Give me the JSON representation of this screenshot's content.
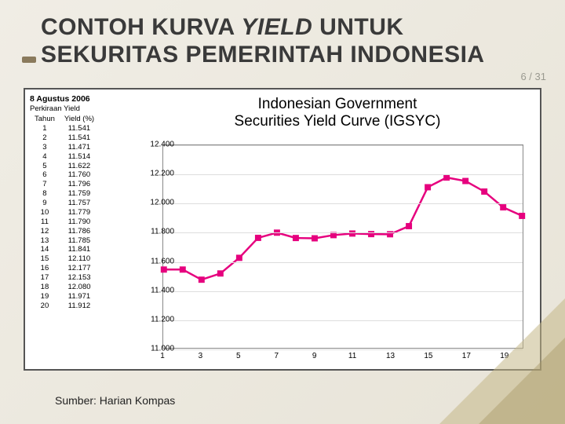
{
  "title": {
    "line1a": "CONTOH KURVA ",
    "line1b": "YIELD",
    "line1c": " UNTUK",
    "line2": "SEKURITAS PEMERINTAH INDONESIA"
  },
  "page": {
    "current": 6,
    "total": 31
  },
  "source": "Sumber: Harian Kompas",
  "table": {
    "date": "8 Agustus 2006",
    "subtitle": "Perkiraan Yield",
    "col1": "Tahun",
    "col2": "Yield (%)",
    "rows": [
      [
        1,
        "11.541"
      ],
      [
        2,
        "11.541"
      ],
      [
        3,
        "11.471"
      ],
      [
        4,
        "11.514"
      ],
      [
        5,
        "11.622"
      ],
      [
        6,
        "11.760"
      ],
      [
        7,
        "11.796"
      ],
      [
        8,
        "11.759"
      ],
      [
        9,
        "11.757"
      ],
      [
        10,
        "11.779"
      ],
      [
        11,
        "11.790"
      ],
      [
        12,
        "11.786"
      ],
      [
        13,
        "11.785"
      ],
      [
        14,
        "11.841"
      ],
      [
        15,
        "12.110"
      ],
      [
        16,
        "12.177"
      ],
      [
        17,
        "12.153"
      ],
      [
        18,
        "12.080"
      ],
      [
        19,
        "11.971"
      ],
      [
        20,
        "11.912"
      ]
    ]
  },
  "chart": {
    "title_line1": "Indonesian Government",
    "title_line2": "Securities Yield Curve (IGSYC)",
    "type": "line",
    "series_color": "#e6007e",
    "marker_fill": "#e6007e",
    "marker_size": 8,
    "line_width": 2.5,
    "background_color": "#ffffff",
    "grid_color": "#dddddd",
    "border_color": "#888888",
    "ylim": [
      11.0,
      12.4
    ],
    "yticks": [
      11.0,
      11.2,
      11.4,
      11.6,
      11.8,
      12.0,
      12.2,
      12.4
    ],
    "ytick_labels": [
      "11.000",
      "11.200",
      "11.400",
      "11.600",
      "11.800",
      "12.000",
      "12.200",
      "12.400"
    ],
    "xlim": [
      1,
      20
    ],
    "xticks": [
      1,
      3,
      5,
      7,
      9,
      11,
      13,
      15,
      17,
      19
    ],
    "x": [
      1,
      2,
      3,
      4,
      5,
      6,
      7,
      8,
      9,
      10,
      11,
      12,
      13,
      14,
      15,
      16,
      17,
      18,
      19,
      20
    ],
    "y": [
      11.541,
      11.541,
      11.471,
      11.514,
      11.622,
      11.76,
      11.796,
      11.759,
      11.757,
      11.779,
      11.79,
      11.786,
      11.785,
      11.841,
      12.11,
      12.177,
      12.153,
      12.08,
      11.971,
      11.912
    ],
    "label_fontsize": 10,
    "title_fontsize": 19
  },
  "style": {
    "slide_bg_from": "#f0ede5",
    "slide_bg_to": "#e8e4d8",
    "accent_color": "#8a7a5c",
    "title_color": "#3a3a3a",
    "title_fontsize": 30,
    "diagonal_fill": "#c4b888"
  }
}
